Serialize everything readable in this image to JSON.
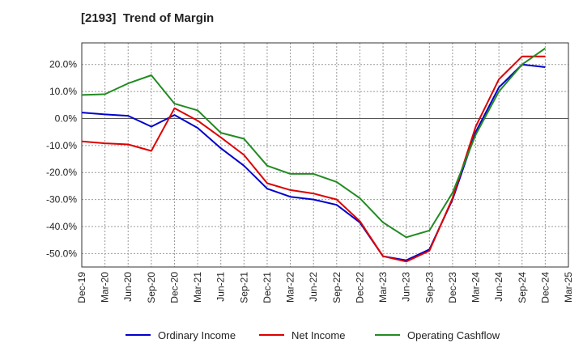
{
  "chart_data": {
    "type": "line",
    "title": "[2193]  Trend of Margin",
    "xlabel": "",
    "ylabel": "",
    "x": [
      "Dec-19",
      "Mar-20",
      "Jun-20",
      "Sep-20",
      "Dec-20",
      "Mar-21",
      "Jun-21",
      "Sep-21",
      "Dec-21",
      "Mar-22",
      "Jun-22",
      "Sep-22",
      "Dec-22",
      "Mar-23",
      "Jun-23",
      "Sep-23",
      "Dec-23",
      "Mar-24",
      "Jun-24",
      "Sep-24",
      "Dec-24",
      "Mar-25"
    ],
    "ylim": [
      -55,
      28
    ],
    "yticks": [
      20,
      10,
      0,
      -10,
      -20,
      -30,
      -40,
      -50
    ],
    "ytick_labels": [
      "20.0%",
      "10.0%",
      "0.0%",
      "-10.0%",
      "-20.0%",
      "-30.0%",
      "-40.0%",
      "-50.0%"
    ],
    "grid": true,
    "legend_position": "bottom",
    "series": [
      {
        "name": "Ordinary Income",
        "color": "#0000cc",
        "values": [
          2.2,
          1.5,
          1.0,
          -3.0,
          1.3,
          -3.5,
          -11.0,
          -17.5,
          -26.0,
          -29.0,
          -30.0,
          -32.0,
          -38.5,
          -51.0,
          -52.5,
          -48.5,
          -30.0,
          -5.0,
          11.5,
          20.0,
          19.0,
          null
        ]
      },
      {
        "name": "Net Income",
        "color": "#dd0000",
        "values": [
          -8.5,
          -9.2,
          -9.6,
          -12.0,
          3.8,
          -0.8,
          -7.0,
          -13.5,
          -24.0,
          -26.5,
          -27.8,
          -30.0,
          -38.0,
          -51.0,
          -53.0,
          -49.0,
          -29.5,
          -3.0,
          14.5,
          23.0,
          23.0,
          null
        ]
      },
      {
        "name": "Operating Cashflow",
        "color": "#228b22",
        "values": [
          8.7,
          9.0,
          13.0,
          16.0,
          5.5,
          3.0,
          -5.3,
          -7.5,
          -17.5,
          -20.5,
          -20.5,
          -23.5,
          -29.5,
          -38.5,
          -44.0,
          -41.5,
          -27.5,
          -6.0,
          10.0,
          20.0,
          26.0,
          null
        ]
      }
    ]
  }
}
